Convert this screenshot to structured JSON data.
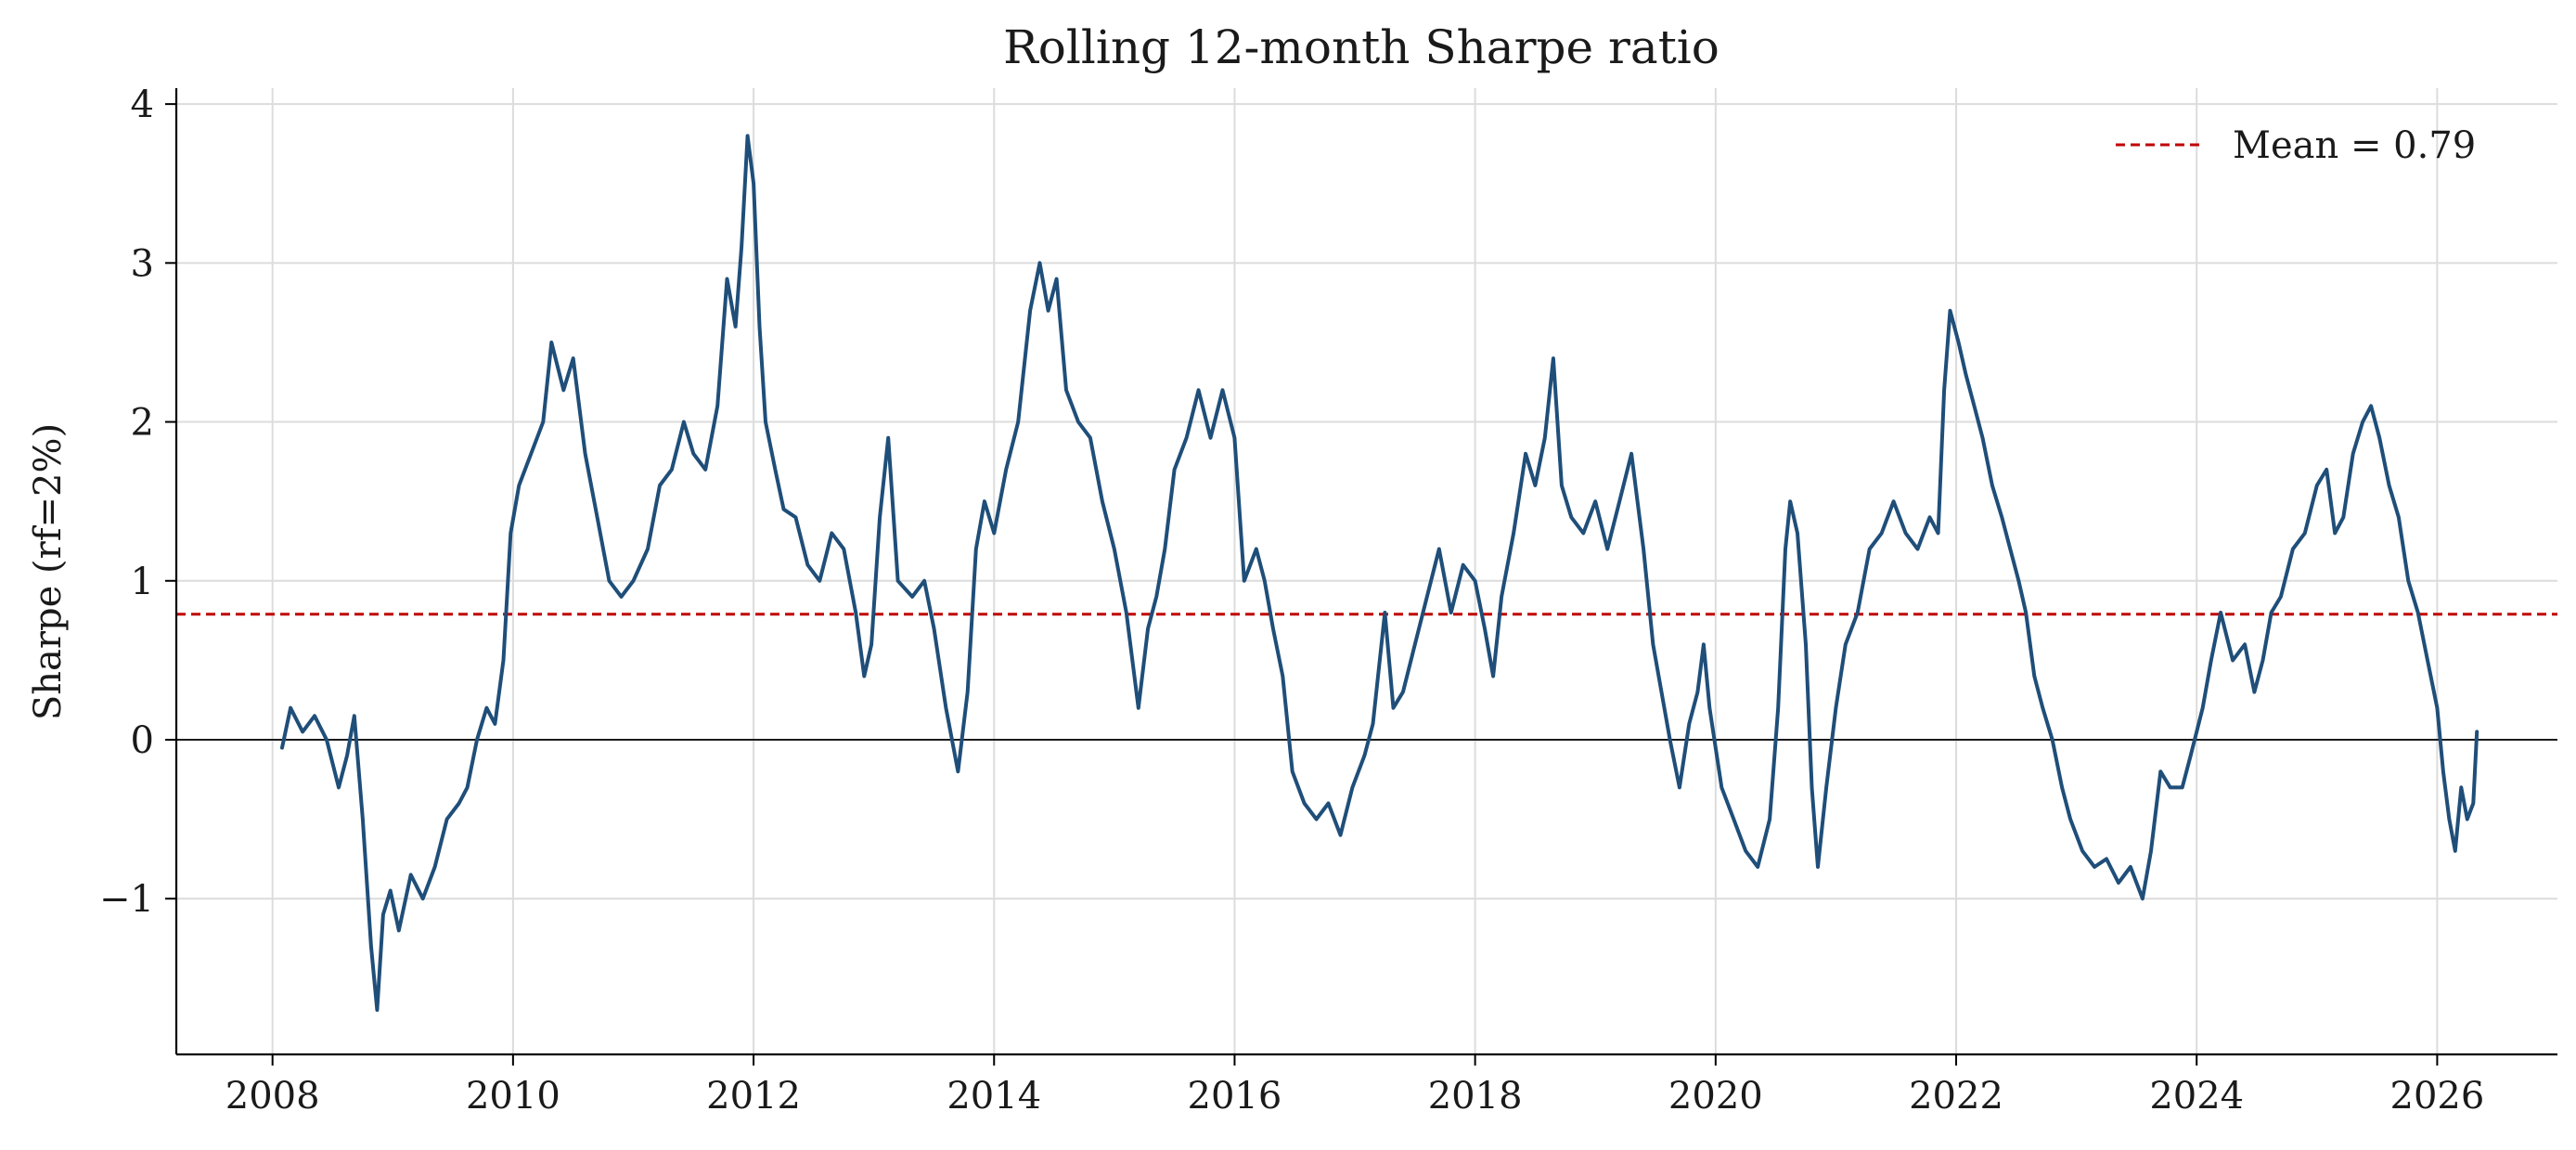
{
  "chart_data": {
    "type": "line",
    "title": "Rolling 12-month Sharpe ratio",
    "xlabel": "",
    "ylabel": "Sharpe (rf=2%)",
    "xlim": [
      2007.2,
      2027.0
    ],
    "ylim": [
      -1.98,
      4.1
    ],
    "x_ticks": [
      2008,
      2010,
      2012,
      2014,
      2016,
      2018,
      2020,
      2022,
      2024,
      2026
    ],
    "x_tick_labels": [
      "2008",
      "2010",
      "2012",
      "2014",
      "2016",
      "2018",
      "2020",
      "2022",
      "2024",
      "2026"
    ],
    "y_ticks": [
      -1,
      0,
      1,
      2,
      3,
      4
    ],
    "y_tick_labels": [
      "−1",
      "0",
      "1",
      "2",
      "3",
      "4"
    ],
    "grid": true,
    "legend_position": "top-right",
    "reference_lines": [
      {
        "orientation": "horizontal",
        "y": 0.79,
        "style": "dashed",
        "color": "#c00000",
        "label": "Mean = 0.79"
      },
      {
        "orientation": "horizontal",
        "y": 0,
        "style": "solid",
        "color": "#000000",
        "label": ""
      }
    ],
    "series": [
      {
        "color": "#1f4e79",
        "points": [
          [
            2008.08,
            -0.05
          ],
          [
            2008.15,
            0.2
          ],
          [
            2008.25,
            0.05
          ],
          [
            2008.35,
            0.15
          ],
          [
            2008.45,
            0.0
          ],
          [
            2008.55,
            -0.3
          ],
          [
            2008.62,
            -0.1
          ],
          [
            2008.68,
            0.15
          ],
          [
            2008.75,
            -0.5
          ],
          [
            2008.82,
            -1.3
          ],
          [
            2008.87,
            -1.7
          ],
          [
            2008.92,
            -1.1
          ],
          [
            2008.98,
            -0.95
          ],
          [
            2009.05,
            -1.2
          ],
          [
            2009.15,
            -0.85
          ],
          [
            2009.25,
            -1.0
          ],
          [
            2009.35,
            -0.8
          ],
          [
            2009.45,
            -0.5
          ],
          [
            2009.55,
            -0.4
          ],
          [
            2009.62,
            -0.3
          ],
          [
            2009.7,
            0.0
          ],
          [
            2009.78,
            0.2
          ],
          [
            2009.85,
            0.1
          ],
          [
            2009.92,
            0.5
          ],
          [
            2009.98,
            1.3
          ],
          [
            2010.05,
            1.6
          ],
          [
            2010.15,
            1.8
          ],
          [
            2010.25,
            2.0
          ],
          [
            2010.32,
            2.5
          ],
          [
            2010.42,
            2.2
          ],
          [
            2010.5,
            2.4
          ],
          [
            2010.6,
            1.8
          ],
          [
            2010.7,
            1.4
          ],
          [
            2010.8,
            1.0
          ],
          [
            2010.9,
            0.9
          ],
          [
            2011.0,
            1.0
          ],
          [
            2011.12,
            1.2
          ],
          [
            2011.22,
            1.6
          ],
          [
            2011.32,
            1.7
          ],
          [
            2011.42,
            2.0
          ],
          [
            2011.5,
            1.8
          ],
          [
            2011.6,
            1.7
          ],
          [
            2011.7,
            2.1
          ],
          [
            2011.78,
            2.9
          ],
          [
            2011.85,
            2.6
          ],
          [
            2011.9,
            3.1
          ],
          [
            2011.95,
            3.8
          ],
          [
            2012.0,
            3.5
          ],
          [
            2012.05,
            2.6
          ],
          [
            2012.1,
            2.0
          ],
          [
            2012.18,
            1.7
          ],
          [
            2012.25,
            1.45
          ],
          [
            2012.35,
            1.4
          ],
          [
            2012.45,
            1.1
          ],
          [
            2012.55,
            1.0
          ],
          [
            2012.65,
            1.3
          ],
          [
            2012.75,
            1.2
          ],
          [
            2012.85,
            0.8
          ],
          [
            2012.92,
            0.4
          ],
          [
            2012.98,
            0.6
          ],
          [
            2013.05,
            1.4
          ],
          [
            2013.12,
            1.9
          ],
          [
            2013.2,
            1.0
          ],
          [
            2013.32,
            0.9
          ],
          [
            2013.42,
            1.0
          ],
          [
            2013.5,
            0.7
          ],
          [
            2013.6,
            0.2
          ],
          [
            2013.7,
            -0.2
          ],
          [
            2013.78,
            0.3
          ],
          [
            2013.85,
            1.2
          ],
          [
            2013.92,
            1.5
          ],
          [
            2014.0,
            1.3
          ],
          [
            2014.1,
            1.7
          ],
          [
            2014.2,
            2.0
          ],
          [
            2014.3,
            2.7
          ],
          [
            2014.38,
            3.0
          ],
          [
            2014.45,
            2.7
          ],
          [
            2014.52,
            2.9
          ],
          [
            2014.6,
            2.2
          ],
          [
            2014.7,
            2.0
          ],
          [
            2014.8,
            1.9
          ],
          [
            2014.9,
            1.5
          ],
          [
            2015.0,
            1.2
          ],
          [
            2015.1,
            0.8
          ],
          [
            2015.2,
            0.2
          ],
          [
            2015.28,
            0.7
          ],
          [
            2015.35,
            0.9
          ],
          [
            2015.42,
            1.2
          ],
          [
            2015.5,
            1.7
          ],
          [
            2015.6,
            1.9
          ],
          [
            2015.7,
            2.2
          ],
          [
            2015.8,
            1.9
          ],
          [
            2015.9,
            2.2
          ],
          [
            2016.0,
            1.9
          ],
          [
            2016.08,
            1.0
          ],
          [
            2016.18,
            1.2
          ],
          [
            2016.25,
            1.0
          ],
          [
            2016.32,
            0.7
          ],
          [
            2016.4,
            0.4
          ],
          [
            2016.48,
            -0.2
          ],
          [
            2016.58,
            -0.4
          ],
          [
            2016.68,
            -0.5
          ],
          [
            2016.78,
            -0.4
          ],
          [
            2016.88,
            -0.6
          ],
          [
            2016.98,
            -0.3
          ],
          [
            2017.08,
            -0.1
          ],
          [
            2017.15,
            0.1
          ],
          [
            2017.25,
            0.8
          ],
          [
            2017.32,
            0.2
          ],
          [
            2017.4,
            0.3
          ],
          [
            2017.5,
            0.6
          ],
          [
            2017.6,
            0.9
          ],
          [
            2017.7,
            1.2
          ],
          [
            2017.8,
            0.8
          ],
          [
            2017.9,
            1.1
          ],
          [
            2018.0,
            1.0
          ],
          [
            2018.08,
            0.7
          ],
          [
            2018.15,
            0.4
          ],
          [
            2018.22,
            0.9
          ],
          [
            2018.32,
            1.3
          ],
          [
            2018.42,
            1.8
          ],
          [
            2018.5,
            1.6
          ],
          [
            2018.58,
            1.9
          ],
          [
            2018.65,
            2.4
          ],
          [
            2018.72,
            1.6
          ],
          [
            2018.8,
            1.4
          ],
          [
            2018.9,
            1.3
          ],
          [
            2019.0,
            1.5
          ],
          [
            2019.1,
            1.2
          ],
          [
            2019.2,
            1.5
          ],
          [
            2019.3,
            1.8
          ],
          [
            2019.4,
            1.2
          ],
          [
            2019.48,
            0.6
          ],
          [
            2019.55,
            0.3
          ],
          [
            2019.62,
            0.0
          ],
          [
            2019.7,
            -0.3
          ],
          [
            2019.78,
            0.1
          ],
          [
            2019.85,
            0.3
          ],
          [
            2019.9,
            0.6
          ],
          [
            2019.95,
            0.2
          ],
          [
            2020.05,
            -0.3
          ],
          [
            2020.15,
            -0.5
          ],
          [
            2020.25,
            -0.7
          ],
          [
            2020.35,
            -0.8
          ],
          [
            2020.45,
            -0.5
          ],
          [
            2020.52,
            0.2
          ],
          [
            2020.58,
            1.2
          ],
          [
            2020.62,
            1.5
          ],
          [
            2020.68,
            1.3
          ],
          [
            2020.75,
            0.6
          ],
          [
            2020.8,
            -0.3
          ],
          [
            2020.85,
            -0.8
          ],
          [
            2020.92,
            -0.3
          ],
          [
            2021.0,
            0.2
          ],
          [
            2021.08,
            0.6
          ],
          [
            2021.18,
            0.8
          ],
          [
            2021.28,
            1.2
          ],
          [
            2021.38,
            1.3
          ],
          [
            2021.48,
            1.5
          ],
          [
            2021.58,
            1.3
          ],
          [
            2021.68,
            1.2
          ],
          [
            2021.78,
            1.4
          ],
          [
            2021.85,
            1.3
          ],
          [
            2021.9,
            2.2
          ],
          [
            2021.95,
            2.7
          ],
          [
            2022.02,
            2.5
          ],
          [
            2022.08,
            2.3
          ],
          [
            2022.15,
            2.1
          ],
          [
            2022.22,
            1.9
          ],
          [
            2022.3,
            1.6
          ],
          [
            2022.38,
            1.4
          ],
          [
            2022.45,
            1.2
          ],
          [
            2022.52,
            1.0
          ],
          [
            2022.58,
            0.8
          ],
          [
            2022.65,
            0.4
          ],
          [
            2022.72,
            0.2
          ],
          [
            2022.8,
            0.0
          ],
          [
            2022.88,
            -0.3
          ],
          [
            2022.95,
            -0.5
          ],
          [
            2023.05,
            -0.7
          ],
          [
            2023.15,
            -0.8
          ],
          [
            2023.25,
            -0.75
          ],
          [
            2023.35,
            -0.9
          ],
          [
            2023.45,
            -0.8
          ],
          [
            2023.55,
            -1.0
          ],
          [
            2023.62,
            -0.7
          ],
          [
            2023.7,
            -0.2
          ],
          [
            2023.78,
            -0.3
          ],
          [
            2023.88,
            -0.3
          ],
          [
            2023.95,
            -0.1
          ],
          [
            2024.05,
            0.2
          ],
          [
            2024.12,
            0.5
          ],
          [
            2024.2,
            0.8
          ],
          [
            2024.3,
            0.5
          ],
          [
            2024.4,
            0.6
          ],
          [
            2024.48,
            0.3
          ],
          [
            2024.55,
            0.5
          ],
          [
            2024.62,
            0.8
          ],
          [
            2024.7,
            0.9
          ],
          [
            2024.8,
            1.2
          ],
          [
            2024.9,
            1.3
          ],
          [
            2025.0,
            1.6
          ],
          [
            2025.08,
            1.7
          ],
          [
            2025.15,
            1.3
          ],
          [
            2025.22,
            1.4
          ],
          [
            2025.3,
            1.8
          ],
          [
            2025.38,
            2.0
          ],
          [
            2025.45,
            2.1
          ],
          [
            2025.52,
            1.9
          ],
          [
            2025.6,
            1.6
          ],
          [
            2025.68,
            1.4
          ],
          [
            2025.76,
            1.0
          ],
          [
            2025.84,
            0.8
          ],
          [
            2025.92,
            0.5
          ],
          [
            2026.0,
            0.2
          ],
          [
            2026.05,
            -0.2
          ],
          [
            2026.1,
            -0.5
          ],
          [
            2026.15,
            -0.7
          ],
          [
            2026.2,
            -0.3
          ],
          [
            2026.25,
            -0.5
          ],
          [
            2026.3,
            -0.4
          ],
          [
            2026.33,
            0.05
          ]
        ]
      }
    ]
  }
}
